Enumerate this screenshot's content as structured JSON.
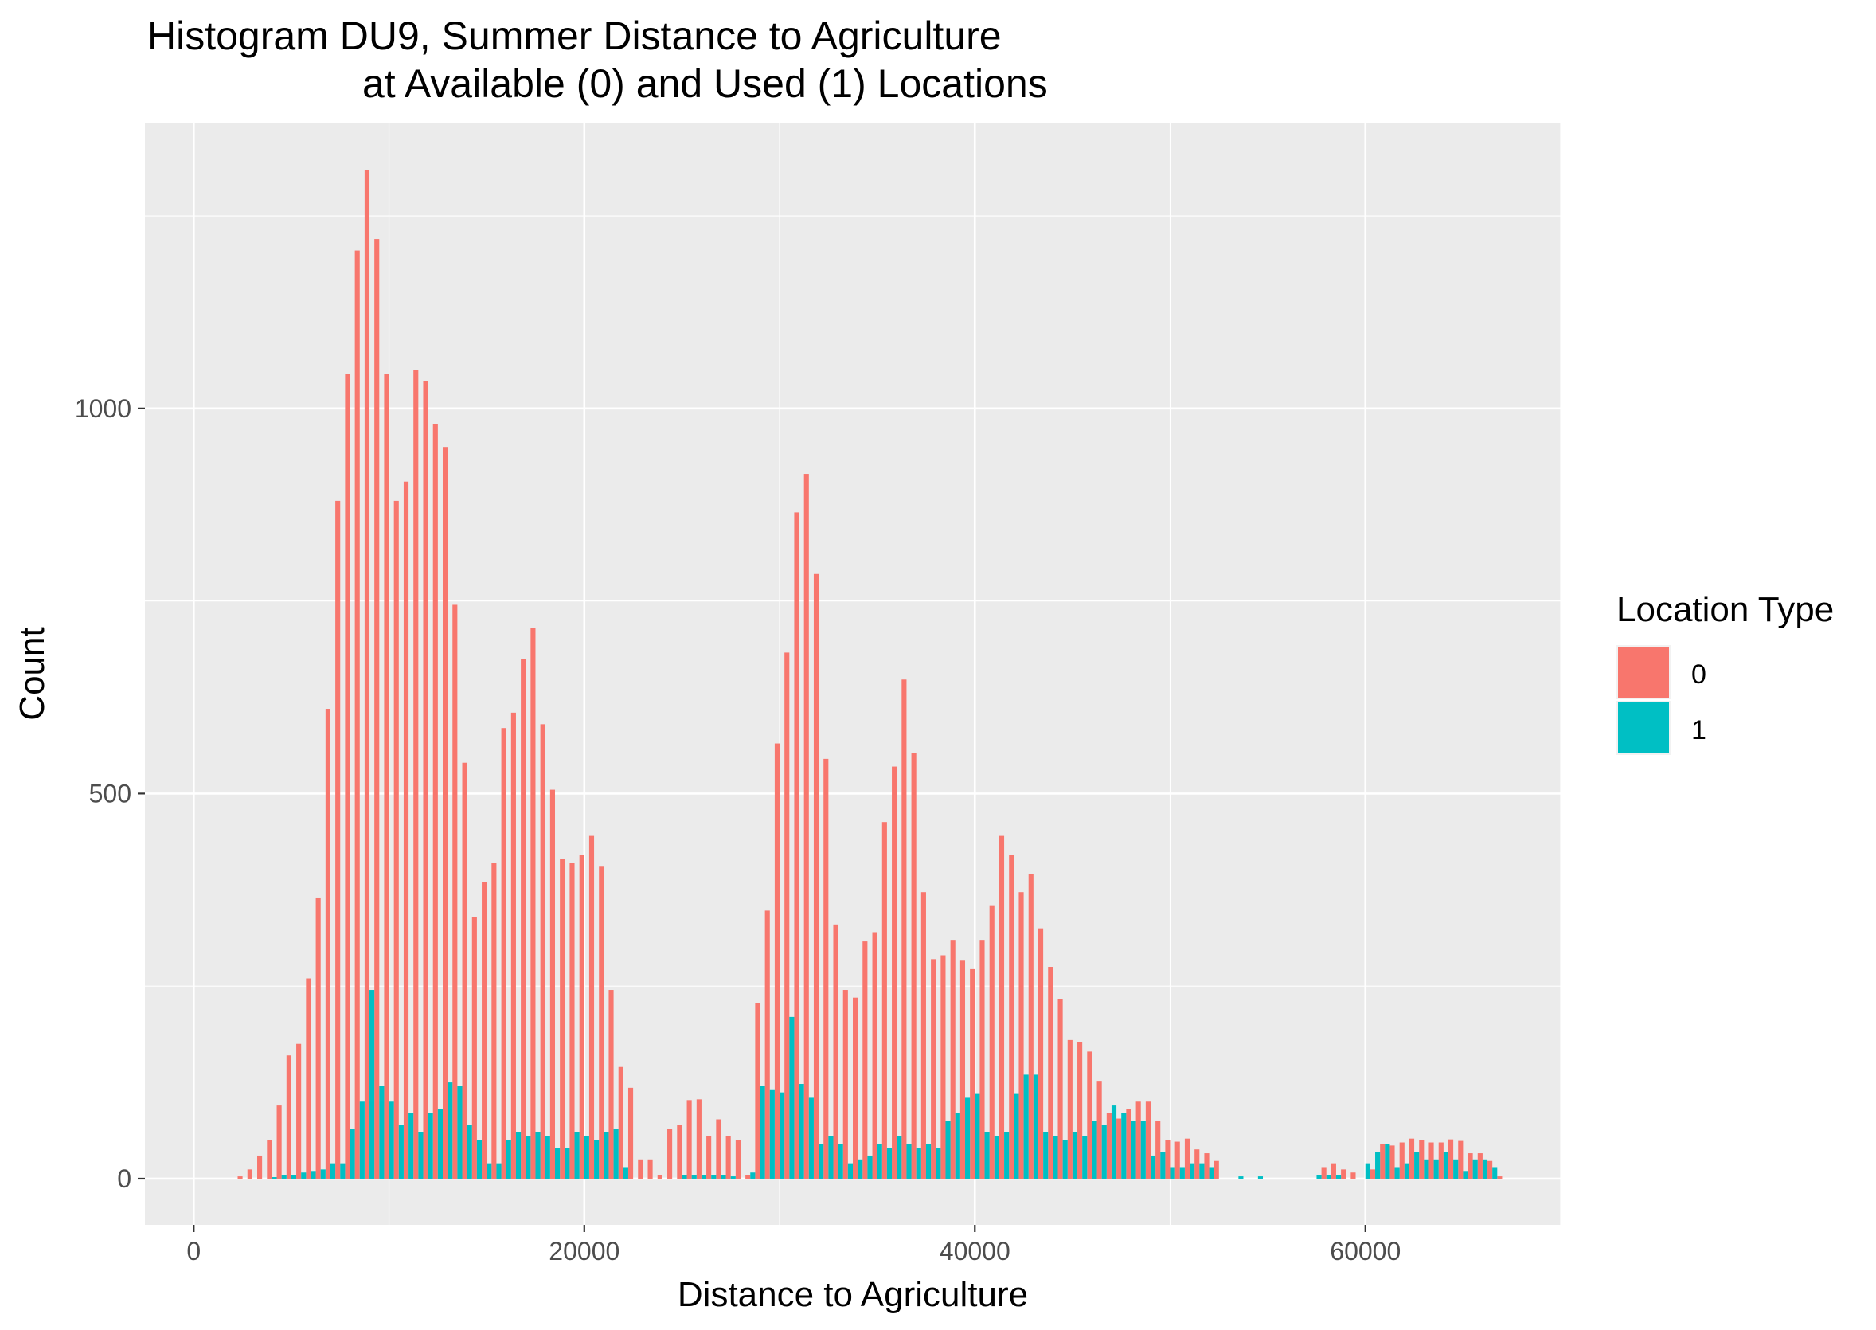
{
  "chart_data": {
    "type": "bar",
    "title": "Histogram DU9, Summer Distance to Agriculture\n           at Available (0) and Used (1) Locations",
    "title_lines": [
      "Histogram DU9, Summer Distance to Agriculture",
      "at Available (0) and Used (1) Locations"
    ],
    "xlabel": "Distance to Agriculture",
    "ylabel": "Count",
    "xlim": [
      -2500,
      70000
    ],
    "ylim": [
      -60,
      1370
    ],
    "x_ticks": [
      0,
      20000,
      40000,
      60000
    ],
    "x_tick_labels": [
      "0",
      "20000",
      "40000",
      "60000"
    ],
    "y_ticks": [
      0,
      500,
      1000
    ],
    "y_tick_labels": [
      "0",
      "500",
      "1000"
    ],
    "grid": true,
    "legend": {
      "title": "Location Type",
      "placement": "right",
      "entries": [
        {
          "label": "0",
          "color": "#F8766D"
        },
        {
          "label": "1",
          "color": "#00BFC4"
        }
      ]
    },
    "bin_width": 500,
    "x": [
      2500,
      3000,
      3500,
      4000,
      4500,
      5000,
      5500,
      6000,
      6500,
      7000,
      7500,
      8000,
      8500,
      9000,
      9500,
      10000,
      10500,
      11000,
      11500,
      12000,
      12500,
      13000,
      13500,
      14000,
      14500,
      15000,
      15500,
      16000,
      16500,
      17000,
      17500,
      18000,
      18500,
      19000,
      19500,
      20000,
      20500,
      21000,
      21500,
      22000,
      22500,
      23000,
      23500,
      24000,
      24500,
      25000,
      25500,
      26000,
      26500,
      27000,
      27500,
      28000,
      28500,
      29000,
      29500,
      30000,
      30500,
      31000,
      31500,
      32000,
      32500,
      33000,
      33500,
      34000,
      34500,
      35000,
      35500,
      36000,
      36500,
      37000,
      37500,
      38000,
      38500,
      39000,
      39500,
      40000,
      40500,
      41000,
      41500,
      42000,
      42500,
      43000,
      43500,
      44000,
      44500,
      45000,
      45500,
      46000,
      46500,
      47000,
      47500,
      48000,
      48500,
      49000,
      49500,
      50000,
      50500,
      51000,
      51500,
      52000,
      52500,
      53000,
      53500,
      54000,
      54500,
      55000,
      55500,
      56000,
      56500,
      57000,
      57500,
      58000,
      58500,
      59000,
      59500,
      60000,
      60500,
      61000,
      61500,
      62000,
      62500,
      63000,
      63500,
      64000,
      64500,
      65000,
      65500,
      66000,
      66500,
      67000
    ],
    "series": [
      {
        "name": "0",
        "color": "#F8766D",
        "values": [
          3,
          12,
          30,
          50,
          95,
          160,
          175,
          260,
          365,
          610,
          880,
          1045,
          1205,
          1310,
          1220,
          1045,
          880,
          905,
          1050,
          1035,
          980,
          950,
          745,
          540,
          340,
          385,
          410,
          585,
          605,
          675,
          715,
          590,
          505,
          415,
          410,
          420,
          445,
          405,
          245,
          145,
          118,
          25,
          25,
          5,
          65,
          70,
          102,
          103,
          55,
          77,
          55,
          50,
          5,
          228,
          348,
          565,
          683,
          865,
          915,
          785,
          545,
          330,
          245,
          235,
          308,
          320,
          463,
          535,
          648,
          553,
          372,
          285,
          290,
          310,
          283,
          272,
          310,
          355,
          445,
          420,
          372,
          395,
          325,
          275,
          233,
          180,
          177,
          165,
          127,
          85,
          78,
          90,
          100,
          100,
          75,
          50,
          48,
          52,
          38,
          33,
          23,
          0,
          0,
          0,
          0,
          0,
          0,
          0,
          0,
          0,
          0,
          15,
          20,
          12,
          8,
          0,
          12,
          45,
          43,
          47,
          52,
          50,
          47,
          47,
          51,
          49,
          33,
          33,
          23,
          3
        ]
      },
      {
        "name": "1",
        "color": "#00BFC4",
        "values": [
          0,
          0,
          0,
          2,
          5,
          5,
          8,
          10,
          12,
          20,
          20,
          65,
          100,
          245,
          120,
          100,
          70,
          85,
          60,
          85,
          90,
          125,
          120,
          70,
          50,
          20,
          20,
          50,
          60,
          55,
          60,
          55,
          40,
          40,
          60,
          55,
          50,
          60,
          65,
          15,
          0,
          0,
          0,
          0,
          0,
          5,
          5,
          5,
          5,
          5,
          3,
          0,
          8,
          120,
          115,
          112,
          210,
          123,
          105,
          45,
          55,
          45,
          20,
          25,
          30,
          45,
          40,
          55,
          45,
          40,
          45,
          40,
          75,
          85,
          105,
          110,
          60,
          55,
          60,
          110,
          135,
          135,
          60,
          55,
          50,
          60,
          55,
          75,
          70,
          95,
          85,
          75,
          75,
          30,
          35,
          15,
          15,
          20,
          20,
          15,
          0,
          0,
          3,
          0,
          3,
          0,
          0,
          0,
          0,
          0,
          5,
          5,
          5,
          0,
          0,
          20,
          35,
          45,
          15,
          20,
          35,
          25,
          25,
          35,
          25,
          10,
          25,
          25,
          15,
          0
        ]
      }
    ]
  }
}
